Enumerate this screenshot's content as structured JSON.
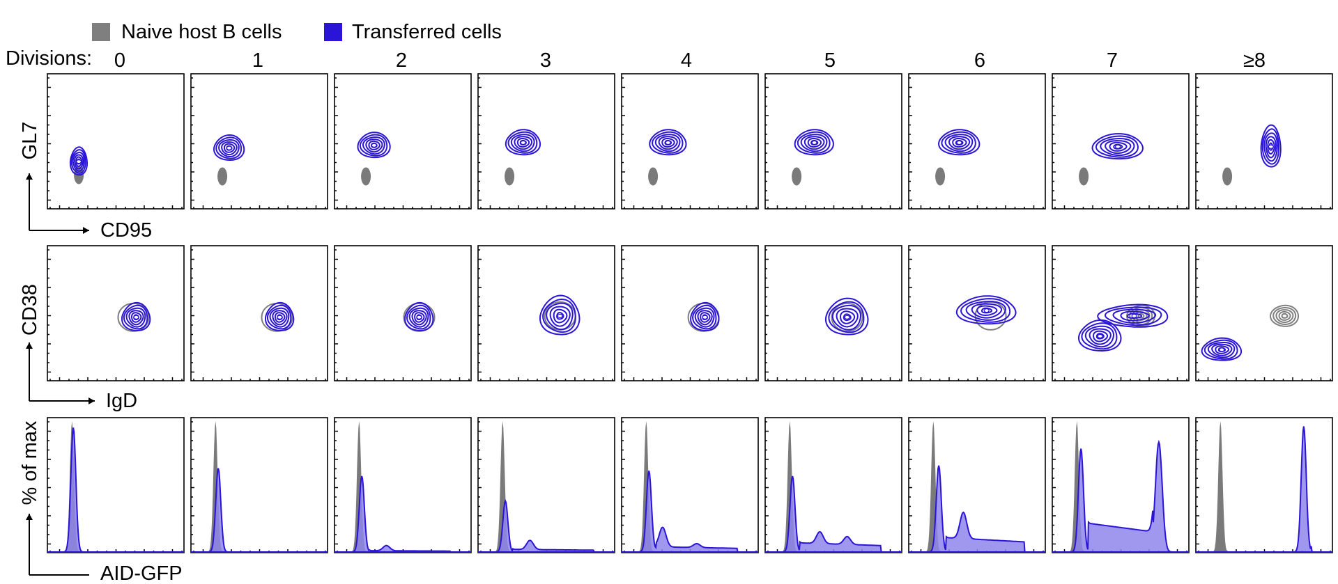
{
  "legend": {
    "placement": "top-left",
    "items": [
      {
        "label": "Naive host B cells",
        "color": "#7f7f7f"
      },
      {
        "label": "Transferred cells",
        "color": "#2a14d8"
      }
    ]
  },
  "divisions_label": "Divisions:",
  "divisions": [
    "0",
    "1",
    "2",
    "3",
    "4",
    "5",
    "6",
    "7",
    "≥8"
  ],
  "colors": {
    "naive": "#808080",
    "naive_fill": "#7a7a7a",
    "transferred": "#2a14d8",
    "transferred_fill": "#8f86ec"
  },
  "chart_data": [
    {
      "type": "contour",
      "name": "row-gl7-cd95",
      "xlabel": "CD95",
      "ylabel": "GL7",
      "xlim": [
        0,
        1
      ],
      "ylim": [
        0,
        1
      ],
      "naive_population": [
        {
          "division": "0",
          "x": 0.23,
          "y": 0.25
        },
        {
          "division": "1",
          "x": 0.23,
          "y": 0.24
        },
        {
          "division": "2",
          "x": 0.23,
          "y": 0.24
        },
        {
          "division": "3",
          "x": 0.23,
          "y": 0.24
        },
        {
          "division": "4",
          "x": 0.23,
          "y": 0.24
        },
        {
          "division": "5",
          "x": 0.23,
          "y": 0.24
        },
        {
          "division": "6",
          "x": 0.23,
          "y": 0.24
        },
        {
          "division": "7",
          "x": 0.23,
          "y": 0.24
        },
        {
          "division": "≥8",
          "x": 0.23,
          "y": 0.24
        }
      ],
      "transferred_population": [
        {
          "division": "0",
          "x": 0.23,
          "y": 0.35
        },
        {
          "division": "1",
          "x": 0.28,
          "y": 0.45
        },
        {
          "division": "2",
          "x": 0.29,
          "y": 0.47
        },
        {
          "division": "3",
          "x": 0.33,
          "y": 0.49
        },
        {
          "division": "4",
          "x": 0.34,
          "y": 0.49
        },
        {
          "division": "5",
          "x": 0.36,
          "y": 0.49
        },
        {
          "division": "6",
          "x": 0.37,
          "y": 0.49
        },
        {
          "division": "7",
          "x": 0.48,
          "y": 0.46
        },
        {
          "division": "≥8",
          "x": 0.55,
          "y": 0.46
        }
      ]
    },
    {
      "type": "contour",
      "name": "row-cd38-igd",
      "xlabel": "IgD",
      "ylabel": "CD38",
      "xlim": [
        0,
        1
      ],
      "ylim": [
        0,
        1
      ],
      "naive_population": [
        {
          "division": "0",
          "x": 0.63,
          "y": 0.47
        },
        {
          "division": "1",
          "x": 0.63,
          "y": 0.47
        },
        {
          "division": "2",
          "x": 0.62,
          "y": 0.47
        },
        {
          "division": "3",
          "x": 0.6,
          "y": 0.48
        },
        {
          "division": "4",
          "x": 0.6,
          "y": 0.47
        },
        {
          "division": "5",
          "x": 0.6,
          "y": 0.47
        },
        {
          "division": "6",
          "x": 0.6,
          "y": 0.48
        },
        {
          "division": "7",
          "x": 0.65,
          "y": 0.48
        },
        {
          "division": "≥8",
          "x": 0.65,
          "y": 0.48
        }
      ],
      "transferred_population": [
        {
          "division": "0",
          "x": 0.65,
          "y": 0.47
        },
        {
          "division": "1",
          "x": 0.65,
          "y": 0.47
        },
        {
          "division": "2",
          "x": 0.62,
          "y": 0.47
        },
        {
          "division": "3",
          "x": 0.6,
          "y": 0.48
        },
        {
          "division": "4",
          "x": 0.61,
          "y": 0.47
        },
        {
          "division": "5",
          "x": 0.6,
          "y": 0.47
        },
        {
          "division": "6",
          "x": 0.57,
          "y": 0.52
        },
        {
          "division": "7",
          "x": 0.35,
          "y": 0.33
        },
        {
          "division": "≥8",
          "x": 0.19,
          "y": 0.23
        }
      ]
    },
    {
      "type": "area",
      "name": "row-aid-gfp-histogram",
      "xlabel": "AID-GFP",
      "ylabel": "% of max",
      "xlim": [
        0,
        1
      ],
      "ylim": [
        0,
        100
      ],
      "naive_peak": {
        "x": 0.18,
        "height": 100
      },
      "transferred_histograms": [
        {
          "division": "0",
          "peaks": [
            {
              "x": 0.19,
              "height": 95
            }
          ],
          "plateau": 0
        },
        {
          "division": "1",
          "peaks": [
            {
              "x": 0.2,
              "height": 64
            }
          ],
          "plateau": 0
        },
        {
          "division": "2",
          "peaks": [
            {
              "x": 0.2,
              "height": 58
            },
            {
              "x": 0.38,
              "height": 4
            }
          ],
          "plateau": 1
        },
        {
          "division": "3",
          "peaks": [
            {
              "x": 0.2,
              "height": 39
            },
            {
              "x": 0.38,
              "height": 7
            }
          ],
          "plateau": 2
        },
        {
          "division": "4",
          "peaks": [
            {
              "x": 0.2,
              "height": 62
            },
            {
              "x": 0.3,
              "height": 15
            },
            {
              "x": 0.55,
              "height": 3
            }
          ],
          "plateau": 4
        },
        {
          "division": "5",
          "peaks": [
            {
              "x": 0.2,
              "height": 58
            },
            {
              "x": 0.4,
              "height": 9
            },
            {
              "x": 0.6,
              "height": 6
            }
          ],
          "plateau": 7
        },
        {
          "division": "6",
          "peaks": [
            {
              "x": 0.22,
              "height": 66
            },
            {
              "x": 0.4,
              "height": 20
            }
          ],
          "plateau": 11
        },
        {
          "division": "7",
          "peaks": [
            {
              "x": 0.21,
              "height": 79
            },
            {
              "x": 0.78,
              "height": 84
            }
          ],
          "plateau": 22
        },
        {
          "division": "≥8",
          "peaks": [
            {
              "x": 0.79,
              "height": 96
            }
          ],
          "plateau": 4
        }
      ]
    }
  ]
}
